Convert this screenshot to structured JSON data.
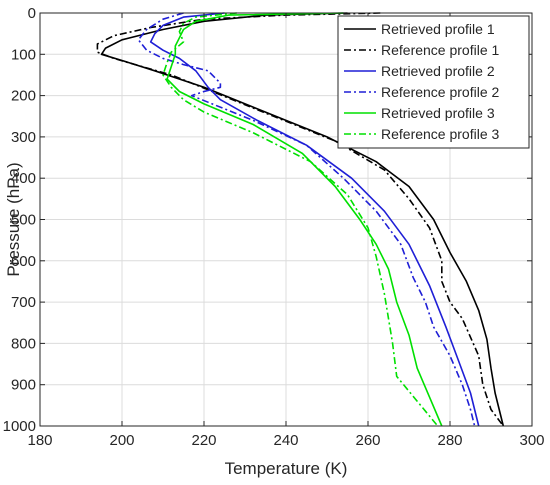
{
  "chart_data": {
    "type": "line",
    "xlabel": "Temperature (K)",
    "ylabel": "Pressure (hPa)",
    "xlim": [
      180,
      300
    ],
    "ylim": [
      0,
      1000
    ],
    "y_reversed": true,
    "xticks": [
      "180",
      "200",
      "220",
      "240",
      "260",
      "280",
      "300"
    ],
    "yticks": [
      "0",
      "100",
      "200",
      "300",
      "400",
      "500",
      "600",
      "700",
      "800",
      "900",
      "1000"
    ],
    "grid": true,
    "legend_position": "top-right",
    "series": [
      {
        "name": "Retrieved profile 1",
        "color": "#000000",
        "dash": "solid",
        "points": [
          [
            255,
            0
          ],
          [
            235,
            5
          ],
          [
            220,
            20
          ],
          [
            210,
            40
          ],
          [
            200,
            65
          ],
          [
            196,
            85
          ],
          [
            195,
            100
          ],
          [
            200,
            115
          ],
          [
            208,
            140
          ],
          [
            220,
            180
          ],
          [
            235,
            240
          ],
          [
            250,
            300
          ],
          [
            262,
            360
          ],
          [
            270,
            420
          ],
          [
            276,
            500
          ],
          [
            280,
            580
          ],
          [
            284,
            650
          ],
          [
            287,
            720
          ],
          [
            289,
            790
          ],
          [
            290,
            860
          ],
          [
            291,
            920
          ],
          [
            293,
            1000
          ]
        ]
      },
      {
        "name": "Reference profile 1",
        "color": "#000000",
        "dash": "dashdot",
        "points": [
          [
            263,
            0
          ],
          [
            240,
            5
          ],
          [
            220,
            15
          ],
          [
            207,
            35
          ],
          [
            198,
            55
          ],
          [
            194,
            75
          ],
          [
            194,
            95
          ],
          [
            198,
            110
          ],
          [
            205,
            130
          ],
          [
            212,
            150
          ],
          [
            222,
            190
          ],
          [
            237,
            250
          ],
          [
            252,
            310
          ],
          [
            264,
            380
          ],
          [
            270,
            450
          ],
          [
            275,
            520
          ],
          [
            278,
            600
          ],
          [
            278,
            650
          ],
          [
            280,
            700
          ],
          [
            283,
            740
          ],
          [
            287,
            830
          ],
          [
            288,
            900
          ],
          [
            290,
            960
          ],
          [
            293,
            1000
          ]
        ]
      },
      {
        "name": "Retrieved profile 2",
        "color": "#1f1fd6",
        "dash": "solid",
        "points": [
          [
            225,
            0
          ],
          [
            215,
            10
          ],
          [
            210,
            30
          ],
          [
            208,
            50
          ],
          [
            207,
            70
          ],
          [
            210,
            90
          ],
          [
            214,
            110
          ],
          [
            218,
            140
          ],
          [
            221,
            180
          ],
          [
            224,
            210
          ],
          [
            233,
            260
          ],
          [
            245,
            320
          ],
          [
            256,
            400
          ],
          [
            264,
            480
          ],
          [
            270,
            560
          ],
          [
            275,
            660
          ],
          [
            279,
            760
          ],
          [
            282,
            840
          ],
          [
            285,
            920
          ],
          [
            287,
            1000
          ]
        ]
      },
      {
        "name": "Reference profile 2",
        "color": "#1f1fd6",
        "dash": "dashdot",
        "points": [
          [
            215,
            0
          ],
          [
            210,
            15
          ],
          [
            206,
            40
          ],
          [
            204,
            65
          ],
          [
            206,
            90
          ],
          [
            210,
            110
          ],
          [
            215,
            125
          ],
          [
            221,
            140
          ],
          [
            224,
            170
          ],
          [
            224,
            180
          ],
          [
            220,
            190
          ],
          [
            217,
            200
          ],
          [
            222,
            220
          ],
          [
            232,
            260
          ],
          [
            245,
            320
          ],
          [
            254,
            400
          ],
          [
            262,
            480
          ],
          [
            268,
            560
          ],
          [
            271,
            640
          ],
          [
            274,
            700
          ],
          [
            276,
            760
          ],
          [
            280,
            830
          ],
          [
            283,
            900
          ],
          [
            285,
            960
          ],
          [
            286,
            1000
          ]
        ]
      },
      {
        "name": "Retrieved profile 3",
        "color": "#00e000",
        "dash": "solid",
        "points": [
          [
            254,
            0
          ],
          [
            226,
            5
          ],
          [
            218,
            20
          ],
          [
            215,
            40
          ],
          [
            214,
            60
          ],
          [
            213,
            80
          ],
          [
            213,
            100
          ],
          [
            212,
            130
          ],
          [
            211,
            160
          ],
          [
            214,
            190
          ],
          [
            220,
            220
          ],
          [
            232,
            270
          ],
          [
            244,
            340
          ],
          [
            252,
            420
          ],
          [
            258,
            500
          ],
          [
            262,
            560
          ],
          [
            265,
            620
          ],
          [
            267,
            700
          ],
          [
            270,
            780
          ],
          [
            272,
            860
          ],
          [
            275,
            930
          ],
          [
            278,
            1000
          ]
        ]
      },
      {
        "name": "Reference profile 3",
        "color": "#00e000",
        "dash": "dashdot",
        "points": [
          [
            228,
            0
          ],
          [
            218,
            10
          ],
          [
            215,
            25
          ],
          [
            214,
            45
          ],
          [
            215,
            70
          ],
          [
            212,
            95
          ],
          [
            211,
            120
          ],
          [
            210,
            150
          ],
          [
            212,
            180
          ],
          [
            215,
            210
          ],
          [
            220,
            240
          ],
          [
            232,
            290
          ],
          [
            246,
            360
          ],
          [
            255,
            440
          ],
          [
            260,
            520
          ],
          [
            262,
            590
          ],
          [
            264,
            680
          ],
          [
            265,
            740
          ],
          [
            266,
            800
          ],
          [
            267,
            880
          ],
          [
            272,
            940
          ],
          [
            277,
            1000
          ]
        ]
      }
    ]
  }
}
